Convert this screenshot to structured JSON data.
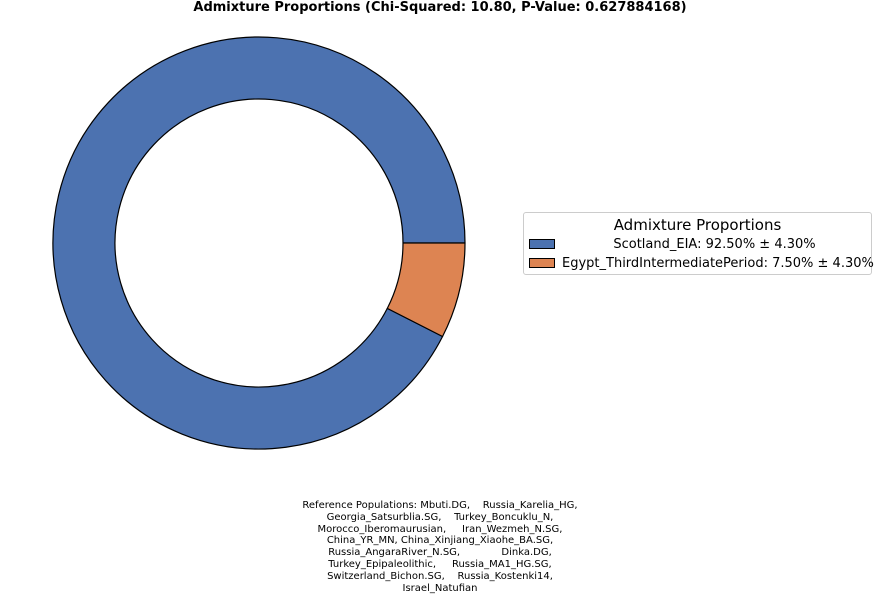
{
  "chart_data": {
    "type": "pie",
    "donut": true,
    "title": "Admixture Proportions (Chi-Squared: 10.80, P-Value: 0.627884168)",
    "slices": [
      {
        "label": "Scotland_EIA",
        "value": 92.5,
        "error": 4.3,
        "color": "#4c72b0",
        "legend_text": "Scotland_EIA: 92.50% ± 4.30%"
      },
      {
        "label": "Egypt_ThirdIntermediatePeriod",
        "value": 7.5,
        "error": 4.3,
        "color": "#dd8452",
        "legend_text": "Egypt_ThirdIntermediatePeriod: 7.50% ± 4.30%"
      }
    ],
    "legend": {
      "title": "Admixture Proportions",
      "placement": "right"
    }
  },
  "footer": {
    "lines": [
      "Reference Populations: Mbuti.DG,    Russia_Karelia_HG,",
      "Georgia_Satsurblia.SG,    Turkey_Boncuklu_N,",
      "Morocco_Iberomaurusian,     Iran_Wezmeh_N.SG,",
      "China_YR_MN, China_Xinjiang_Xiaohe_BA.SG,",
      "Russia_AngaraRiver_N.SG,             Dinka.DG,",
      "Turkey_Epipaleolithic,     Russia_MA1_HG.SG,",
      "Switzerland_Bichon.SG,    Russia_Kostenki14,",
      "Israel_Natufian"
    ]
  }
}
